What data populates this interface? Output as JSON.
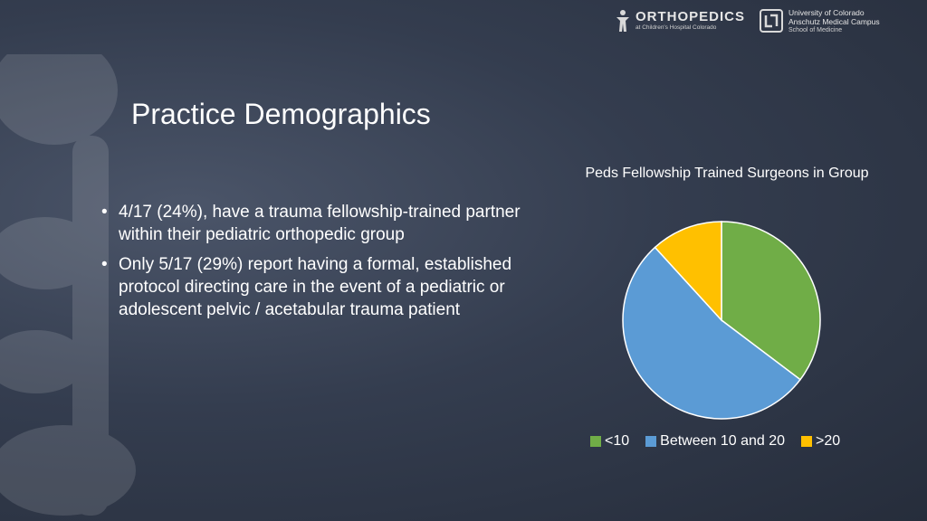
{
  "logos": {
    "ortho_name": "ORTHOPEDICS",
    "ortho_sub": "at Children's Hospital Colorado",
    "cu_line1": "University of Colorado",
    "cu_line2": "Anschutz Medical Campus",
    "cu_line3": "School of Medicine"
  },
  "slide": {
    "title": "Practice Demographics",
    "bullet_char": "•",
    "bullets": [
      "4/17 (24%), have a trauma fellowship-trained partner within their pediatric orthopedic group",
      "Only 5/17 (29%) report having a formal, established protocol directing care in the event of a pediatric or adolescent pelvic / acetabular trauma patient"
    ]
  },
  "chart_data": {
    "type": "pie",
    "title": "Peds Fellowship Trained Surgeons in Group",
    "categories": [
      "<10",
      "Between 10 and 20",
      ">20"
    ],
    "values": [
      6,
      9,
      2
    ],
    "colors": [
      "#70AD47",
      "#5B9BD5",
      "#FFC000"
    ],
    "legend_position": "bottom",
    "start_angle": "12 o'clock",
    "direction": "clockwise"
  }
}
